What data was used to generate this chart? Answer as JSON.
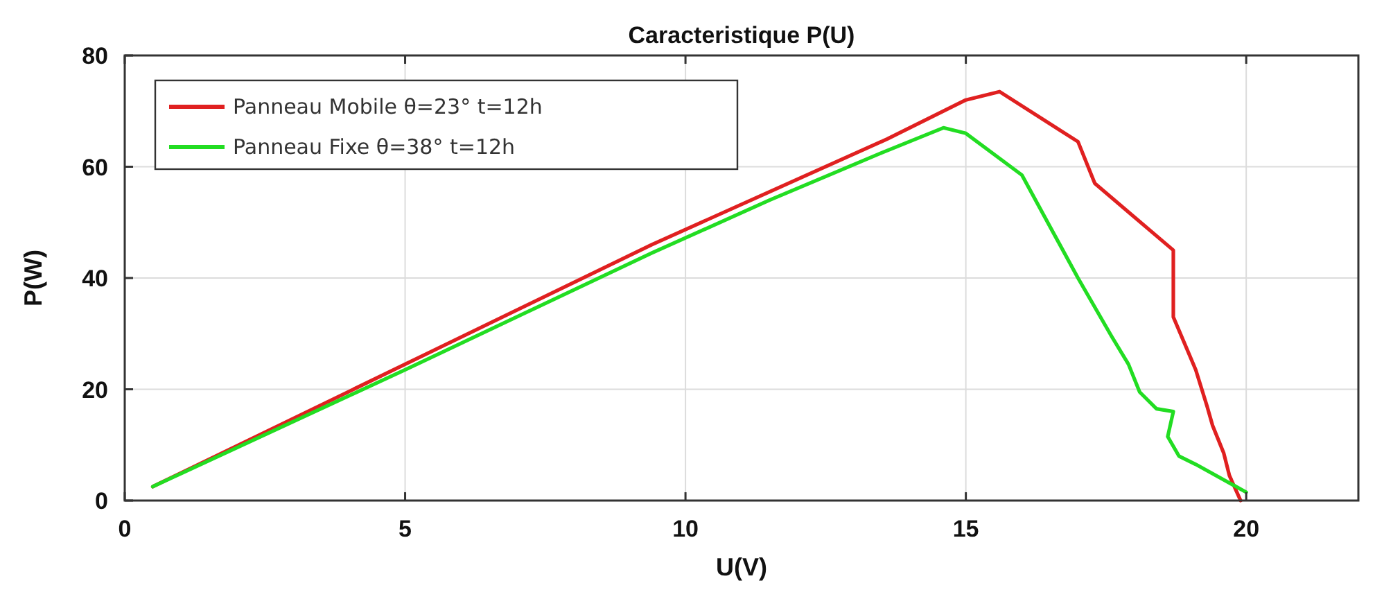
{
  "chart_data": {
    "type": "line",
    "title": "Caracteristique P(U)",
    "xlabel": "U(V)",
    "ylabel": "P(W)",
    "xlim": [
      0,
      22
    ],
    "ylim": [
      0,
      80
    ],
    "xticks": [
      0,
      5,
      10,
      15,
      20
    ],
    "yticks": [
      0,
      20,
      40,
      60,
      80
    ],
    "grid": true,
    "legend": "top left",
    "line_style": "solid",
    "marker": "none",
    "series": [
      {
        "name": "Panneau Mobile θ=23° t=12h",
        "color": "#e02020",
        "x": [
          0.5,
          5,
          9.4,
          11.5,
          13.6,
          15,
          15.6,
          17,
          17.3,
          18,
          18.7,
          18.7,
          19.1,
          19.3,
          19.4,
          19.6,
          19.7,
          19.9
        ],
        "values": [
          2.5,
          24.5,
          46,
          55.5,
          65,
          72,
          73.5,
          64.5,
          57,
          51,
          45,
          33,
          23.5,
          17,
          13.5,
          8.5,
          4.5,
          0
        ]
      },
      {
        "name": "Panneau Fixe θ=38° t=12h",
        "color": "#22dd22",
        "x": [
          0.5,
          5,
          9.4,
          11.5,
          13.5,
          14.6,
          15,
          16,
          17,
          17.6,
          17.9,
          18.1,
          18.4,
          18.7,
          18.6,
          18.8,
          19.1,
          20
        ],
        "values": [
          2.5,
          23.5,
          44.5,
          54,
          62.5,
          67,
          66,
          58.5,
          40,
          29.5,
          24.5,
          19.5,
          16.5,
          16,
          11.5,
          8,
          6.5,
          1.5
        ]
      }
    ]
  }
}
